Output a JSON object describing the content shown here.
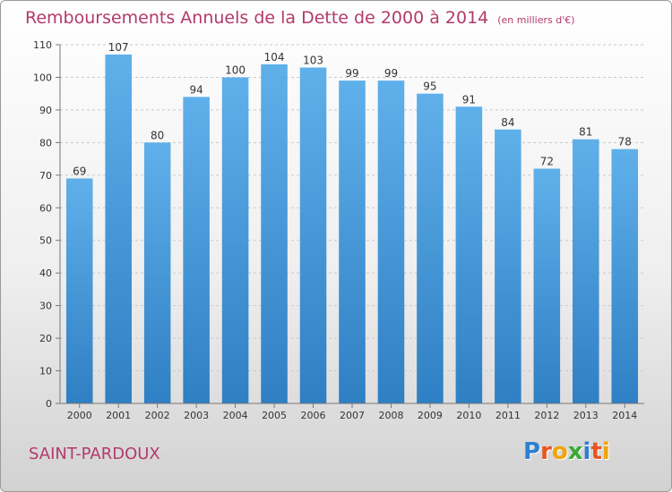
{
  "chart_data": {
    "type": "bar",
    "title": "Remboursements Annuels de la Dette de 2000 à 2014",
    "unit_note": "(en milliers d'€)",
    "categories": [
      "2000",
      "2001",
      "2002",
      "2003",
      "2004",
      "2005",
      "2006",
      "2007",
      "2008",
      "2009",
      "2010",
      "2011",
      "2012",
      "2013",
      "2014"
    ],
    "values": [
      69,
      107,
      80,
      94,
      100,
      104,
      103,
      99,
      99,
      95,
      91,
      84,
      72,
      81,
      78
    ],
    "ylim": [
      0,
      110
    ],
    "yticks": [
      0,
      10,
      20,
      30,
      40,
      50,
      60,
      70,
      80,
      90,
      100,
      110
    ],
    "grid": true,
    "data_labels": true,
    "bar_color": "#4d9fdd",
    "title_color": "#b33a6a"
  },
  "commune": "SAINT-PARDOUX",
  "logo": {
    "letters": [
      "P",
      "r",
      "o",
      "x",
      "i",
      "t",
      "i"
    ],
    "colors": [
      "#2f7fd1",
      "#e8551f",
      "#f0a30a",
      "#3ba935",
      "#2f7fd1",
      "#e8551f",
      "#f0a30a"
    ]
  }
}
